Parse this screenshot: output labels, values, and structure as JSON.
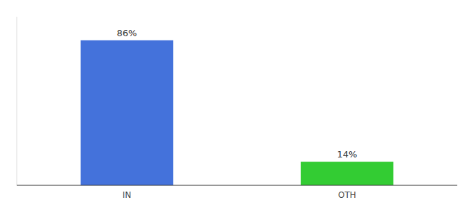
{
  "chart_data": {
    "type": "bar",
    "categories": [
      "IN",
      "OTH"
    ],
    "values": [
      86,
      14
    ],
    "value_labels": [
      "86%",
      "14%"
    ],
    "colors": [
      "#4472db",
      "#33cc33"
    ],
    "data_labels": true,
    "ylim": [
      0,
      100
    ],
    "tick_labels": "x"
  }
}
